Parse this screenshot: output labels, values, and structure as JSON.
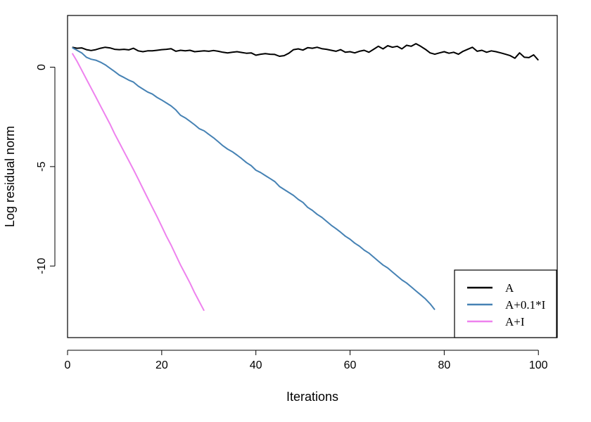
{
  "chart_data": {
    "type": "line",
    "title": "",
    "xlabel": "Iterations",
    "ylabel": "Log residual norm",
    "xlim": [
      0,
      104
    ],
    "ylim": [
      -13.6,
      2.6
    ],
    "xticks": [
      0,
      20,
      40,
      60,
      80,
      100
    ],
    "yticks": [
      0,
      -5,
      -10
    ],
    "grid": false,
    "legend_position": "bottom-right",
    "series": [
      {
        "name": "A",
        "color": "#000000",
        "x": [
          1,
          2,
          3,
          4,
          5,
          6,
          7,
          8,
          9,
          10,
          11,
          12,
          13,
          14,
          15,
          16,
          17,
          18,
          19,
          20,
          21,
          22,
          23,
          24,
          25,
          26,
          27,
          28,
          29,
          30,
          31,
          32,
          33,
          34,
          35,
          36,
          37,
          38,
          39,
          40,
          41,
          42,
          43,
          44,
          45,
          46,
          47,
          48,
          49,
          50,
          51,
          52,
          53,
          54,
          55,
          56,
          57,
          58,
          59,
          60,
          61,
          62,
          63,
          64,
          65,
          66,
          67,
          68,
          69,
          70,
          71,
          72,
          73,
          74,
          75,
          76,
          77,
          78,
          79,
          80,
          81,
          82,
          83,
          84,
          85,
          86,
          87,
          88,
          89,
          90,
          91,
          92,
          93,
          94,
          95,
          96,
          97,
          98,
          99,
          100
        ],
        "y": [
          1.0,
          0.95,
          0.97,
          0.88,
          0.84,
          0.88,
          0.95,
          1.0,
          0.97,
          0.9,
          0.88,
          0.9,
          0.87,
          0.95,
          0.82,
          0.78,
          0.82,
          0.82,
          0.85,
          0.88,
          0.9,
          0.93,
          0.8,
          0.85,
          0.82,
          0.85,
          0.78,
          0.8,
          0.82,
          0.8,
          0.84,
          0.8,
          0.75,
          0.72,
          0.75,
          0.78,
          0.74,
          0.7,
          0.72,
          0.6,
          0.65,
          0.68,
          0.65,
          0.64,
          0.55,
          0.58,
          0.7,
          0.88,
          0.92,
          0.86,
          0.98,
          0.95,
          1.0,
          0.93,
          0.9,
          0.85,
          0.8,
          0.88,
          0.75,
          0.78,
          0.72,
          0.8,
          0.85,
          0.75,
          0.9,
          1.05,
          0.92,
          1.08,
          1.0,
          1.05,
          0.92,
          1.1,
          1.05,
          1.18,
          1.05,
          0.9,
          0.72,
          0.65,
          0.72,
          0.78,
          0.7,
          0.75,
          0.65,
          0.8,
          0.9,
          1.0,
          0.8,
          0.85,
          0.75,
          0.82,
          0.78,
          0.72,
          0.65,
          0.58,
          0.45,
          0.72,
          0.5,
          0.48,
          0.62,
          0.35
        ]
      },
      {
        "name": "A+0.1*I",
        "color": "#4682b4",
        "x": [
          1,
          2,
          3,
          4,
          5,
          6,
          7,
          8,
          9,
          10,
          11,
          12,
          13,
          14,
          15,
          16,
          17,
          18,
          19,
          20,
          21,
          22,
          23,
          24,
          25,
          26,
          27,
          28,
          29,
          30,
          31,
          32,
          33,
          34,
          35,
          36,
          37,
          38,
          39,
          40,
          41,
          42,
          43,
          44,
          45,
          46,
          47,
          48,
          49,
          50,
          51,
          52,
          53,
          54,
          55,
          56,
          57,
          58,
          59,
          60,
          61,
          62,
          63,
          64,
          65,
          66,
          67,
          68,
          69,
          70,
          71,
          72,
          73,
          74,
          75,
          76,
          77,
          78
        ],
        "y": [
          0.98,
          0.85,
          0.72,
          0.5,
          0.4,
          0.35,
          0.25,
          0.12,
          -0.05,
          -0.22,
          -0.4,
          -0.52,
          -0.65,
          -0.75,
          -0.95,
          -1.1,
          -1.25,
          -1.35,
          -1.52,
          -1.65,
          -1.8,
          -1.95,
          -2.15,
          -2.42,
          -2.55,
          -2.72,
          -2.9,
          -3.1,
          -3.2,
          -3.38,
          -3.55,
          -3.75,
          -3.95,
          -4.12,
          -4.25,
          -4.42,
          -4.6,
          -4.8,
          -4.95,
          -5.18,
          -5.3,
          -5.45,
          -5.6,
          -5.75,
          -6.0,
          -6.15,
          -6.3,
          -6.45,
          -6.65,
          -6.8,
          -7.05,
          -7.2,
          -7.4,
          -7.55,
          -7.75,
          -7.95,
          -8.12,
          -8.3,
          -8.5,
          -8.65,
          -8.85,
          -9.0,
          -9.2,
          -9.35,
          -9.55,
          -9.75,
          -9.95,
          -10.1,
          -10.3,
          -10.5,
          -10.7,
          -10.85,
          -11.05,
          -11.25,
          -11.45,
          -11.65,
          -11.9,
          -12.2
        ]
      },
      {
        "name": "A+I",
        "color": "#ee82ee",
        "x": [
          1,
          2,
          3,
          4,
          5,
          6,
          7,
          8,
          9,
          10,
          11,
          12,
          13,
          14,
          15,
          16,
          17,
          18,
          19,
          20,
          21,
          22,
          23,
          24,
          25,
          26,
          27,
          28,
          29
        ],
        "y": [
          0.7,
          0.3,
          -0.15,
          -0.6,
          -1.05,
          -1.5,
          -1.95,
          -2.4,
          -2.85,
          -3.35,
          -3.8,
          -4.25,
          -4.7,
          -5.15,
          -5.62,
          -6.1,
          -6.58,
          -7.05,
          -7.52,
          -8.0,
          -8.5,
          -8.95,
          -9.45,
          -9.95,
          -10.4,
          -10.85,
          -11.35,
          -11.8,
          -12.25
        ]
      }
    ]
  }
}
